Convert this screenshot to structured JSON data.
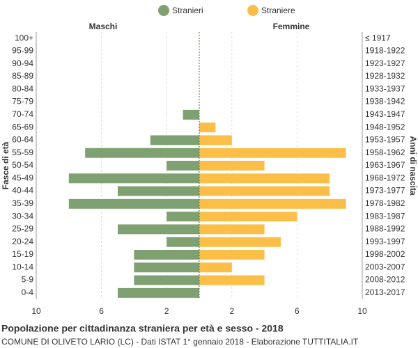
{
  "chart_data": {
    "type": "pyramid",
    "title": "Popolazione per cittadinanza straniera per età e sesso - 2018",
    "subtitle": "COMUNE DI OLIVETO LARIO (LC) - Dati ISTAT 1° gennaio 2018 - Elaborazione TUTTITALIA.IT",
    "left_label": "Maschi",
    "right_label": "Femmine",
    "y_label": "Fasce di età",
    "y2_label": "Anni di nascita",
    "categories": [
      "100+",
      "95-99",
      "90-94",
      "85-89",
      "80-84",
      "75-79",
      "70-74",
      "65-69",
      "60-64",
      "55-59",
      "50-54",
      "45-49",
      "40-44",
      "35-39",
      "30-34",
      "25-29",
      "20-24",
      "15-19",
      "10-14",
      "5-9",
      "0-4"
    ],
    "birth_years": [
      "≤ 1917",
      "1918-1922",
      "1923-1927",
      "1928-1932",
      "1933-1937",
      "1938-1942",
      "1943-1947",
      "1948-1952",
      "1953-1957",
      "1958-1962",
      "1963-1967",
      "1968-1972",
      "1973-1977",
      "1978-1982",
      "1983-1987",
      "1988-1992",
      "1993-1997",
      "1998-2002",
      "2003-2007",
      "2008-2012",
      "2013-2017"
    ],
    "series": [
      {
        "name": "Stranieri",
        "color": "#7fa070",
        "values": [
          0,
          0,
          0,
          0,
          0,
          0,
          1,
          0,
          3,
          7,
          2,
          8,
          5,
          8,
          2,
          5,
          2,
          4,
          4,
          4,
          5
        ]
      },
      {
        "name": "Straniere",
        "color": "#fbbf47",
        "values": [
          0,
          0,
          0,
          0,
          0,
          0,
          0,
          1,
          2,
          9,
          4,
          8,
          8,
          9,
          6,
          4,
          5,
          4,
          2,
          4,
          0
        ]
      }
    ],
    "xlim": [
      0,
      10
    ],
    "xticks_left": [
      10,
      6,
      2
    ],
    "xticks_right": [
      2,
      6,
      10
    ],
    "grid": true
  }
}
